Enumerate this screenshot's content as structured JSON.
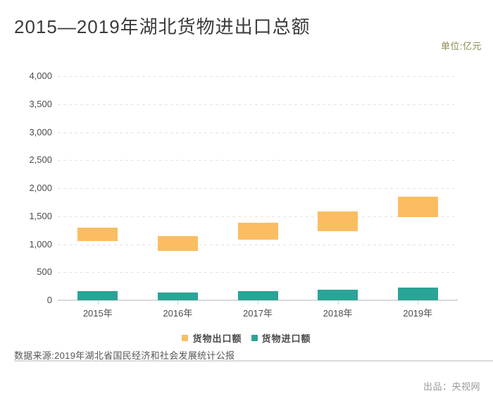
{
  "header": {
    "title": "2015—2019年湖北货物进出口总额",
    "unit_label": "单位:亿元"
  },
  "footer": {
    "source_text": "数据来源:2019年湖北省国民经济和社会发展统计公报",
    "producer_text": "出品：央视网"
  },
  "colors": {
    "export_bar": "#FABD62",
    "import_bar": "#2AA496",
    "title_text": "#3B3B3B",
    "axis_label": "#4C4C4C",
    "gridline": "#E4E4E4",
    "axis_line": "#D9D9D9",
    "unit_text": "#8B8951",
    "source_text": "#555555",
    "producer_text": "#999999"
  },
  "chart_data": {
    "type": "bar",
    "title": "2015—2019年湖北货物进出口总额",
    "unit": "亿元",
    "categories": [
      "2015年",
      "2016年",
      "2017年",
      "2018年",
      "2019年"
    ],
    "series": [
      {
        "name": "货物出口额",
        "color": "#FABD62",
        "style": "floating-bar",
        "ranges": [
          [
            1050,
            1300
          ],
          [
            880,
            1150
          ],
          [
            1080,
            1390
          ],
          [
            1230,
            1580
          ],
          [
            1480,
            1850
          ]
        ]
      },
      {
        "name": "货物进口额",
        "color": "#2AA496",
        "style": "column",
        "values": [
          160,
          140,
          170,
          185,
          225
        ]
      }
    ],
    "ylim": [
      0,
      4000
    ],
    "ytick_values": [
      0,
      500,
      1000,
      1500,
      2000,
      2500,
      3000,
      3500,
      4000
    ],
    "ytick_labels": [
      "0",
      "500",
      "1,000",
      "1,500",
      "2,000",
      "2,500",
      "3,000",
      "3,500",
      "4,000"
    ],
    "grid": "horizontal-dashed",
    "legend_position": "bottom-center"
  }
}
